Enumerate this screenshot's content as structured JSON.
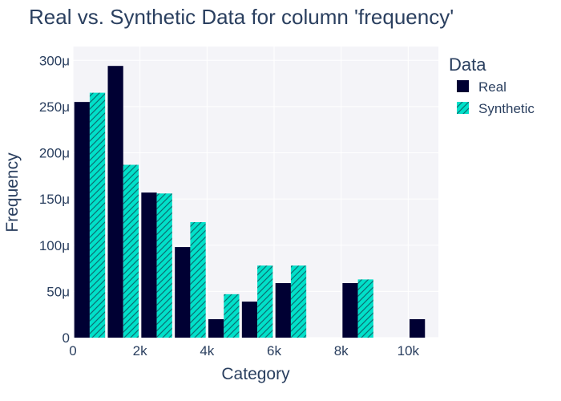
{
  "chart_data": {
    "type": "bar",
    "title": "Real vs. Synthetic Data for column 'frequency'",
    "xlabel": "Category",
    "ylabel": "Frequency",
    "xlim": [
      0,
      10900
    ],
    "ylim": [
      0,
      0.000315
    ],
    "bin_width": 1000,
    "x_ticks": [
      {
        "value": 0,
        "label": "0"
      },
      {
        "value": 2000,
        "label": "2k"
      },
      {
        "value": 4000,
        "label": "4k"
      },
      {
        "value": 6000,
        "label": "6k"
      },
      {
        "value": 8000,
        "label": "8k"
      },
      {
        "value": 10000,
        "label": "10k"
      }
    ],
    "y_ticks": [
      {
        "value": 0,
        "label": "0"
      },
      {
        "value": 5e-05,
        "label": "50μ"
      },
      {
        "value": 0.0001,
        "label": "100μ"
      },
      {
        "value": 0.00015,
        "label": "150μ"
      },
      {
        "value": 0.0002,
        "label": "200μ"
      },
      {
        "value": 0.00025,
        "label": "250μ"
      },
      {
        "value": 0.0003,
        "label": "300μ"
      }
    ],
    "categories": [
      0,
      1000,
      2000,
      3000,
      4000,
      5000,
      6000,
      7000,
      8000,
      9000,
      10000
    ],
    "series": [
      {
        "name": "Real",
        "color": "#000033",
        "pattern": "solid",
        "values": [
          0.000255,
          0.000294,
          0.000157,
          9.8e-05,
          2e-05,
          3.9e-05,
          5.9e-05,
          0,
          5.9e-05,
          0,
          2e-05
        ]
      },
      {
        "name": "Synthetic",
        "color": "#01e0c9",
        "pattern": "hatch",
        "values": [
          0.000265,
          0.000187,
          0.000156,
          0.000125,
          4.7e-05,
          7.8e-05,
          7.8e-05,
          0,
          6.3e-05,
          0,
          0
        ]
      }
    ],
    "grid": true,
    "legend": {
      "title": "Data",
      "position": "right"
    },
    "plot_background": "#f4f4f8"
  }
}
